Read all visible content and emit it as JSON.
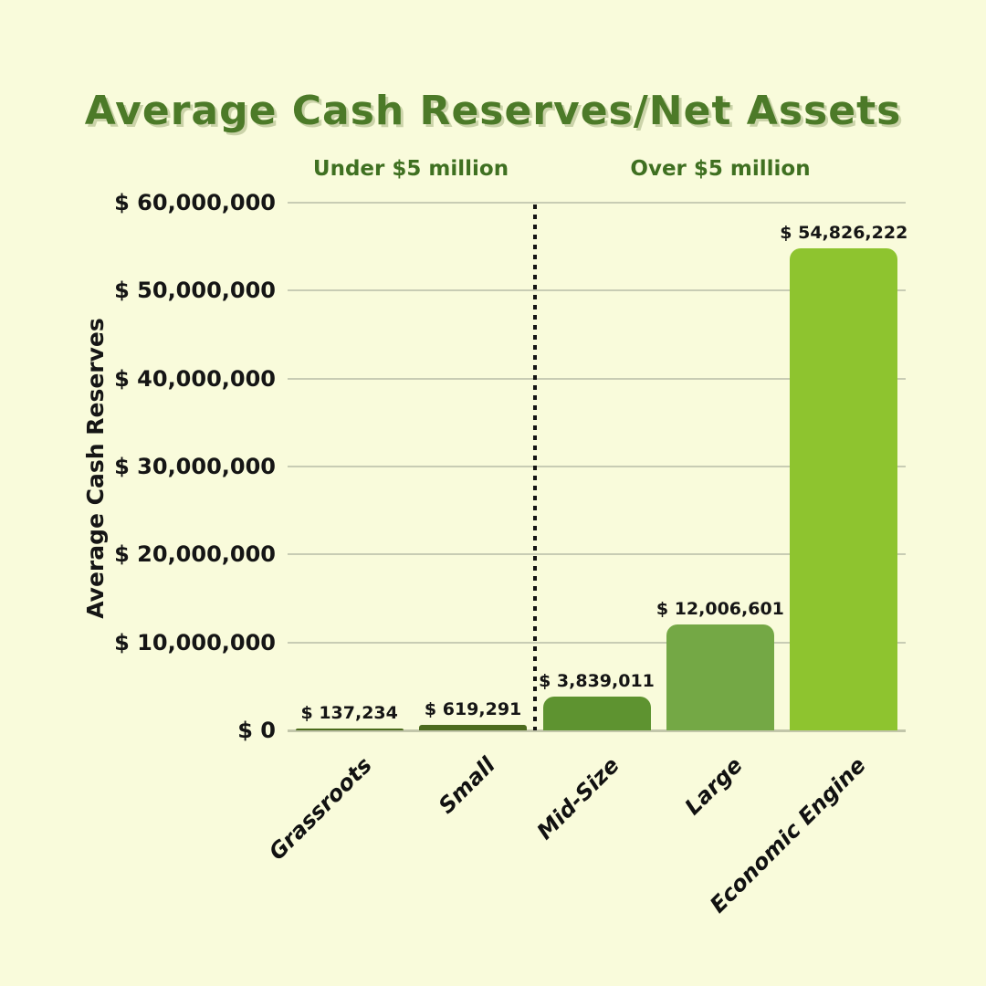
{
  "page": {
    "background_color": "#f9fbdb",
    "title_color": "#4c7a28",
    "group_label_color": "#3f7021",
    "gridline_color": "#c8ccb4",
    "text_color": "#151515",
    "divider_color": "#141414"
  },
  "chart_data": {
    "type": "bar",
    "title": "Average Cash Reserves/Net Assets",
    "xlabel": "",
    "ylabel": "Average Cash Reserves",
    "categories": [
      "Grassroots",
      "Small",
      "Mid-Size",
      "Large",
      "Economic Engine"
    ],
    "values": [
      137234,
      619291,
      3839011,
      12006601,
      54826222
    ],
    "value_labels": [
      "$ 137,234",
      "$ 619,291",
      "$ 3,839,011",
      "$ 12,006,601",
      "$ 54,826,222"
    ],
    "bar_colors": [
      "#4c6b1e",
      "#4c6b1e",
      "#5e9330",
      "#74a845",
      "#8ec42f"
    ],
    "ylim": [
      0,
      60000000
    ],
    "yticks": [
      0,
      10000000,
      20000000,
      30000000,
      40000000,
      50000000,
      60000000
    ],
    "ytick_labels": [
      "$ 0",
      "$ 10,000,000",
      "$ 20,000,000",
      "$ 30,000,000",
      "$ 40,000,000",
      "$ 50,000,000",
      "$ 60,000,000"
    ],
    "grid": true,
    "legend": false,
    "group_labels": [
      {
        "label": "Under $5 million",
        "categories": [
          "Grassroots",
          "Small"
        ]
      },
      {
        "label": "Over $5 million",
        "categories": [
          "Mid-Size",
          "Large",
          "Economic Engine"
        ]
      }
    ],
    "divider": {
      "position": "between Small and Mid-Size",
      "style": "dotted vertical line"
    }
  }
}
